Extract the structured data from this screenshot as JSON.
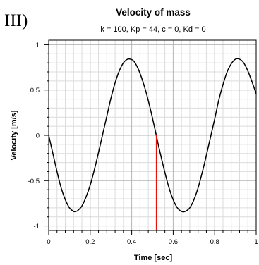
{
  "panel_label": "III)",
  "chart_data": {
    "type": "line",
    "title": "Velocity of mass",
    "subtitle": "k = 100, Kp = 44, c = 0, Kd = 0",
    "xlabel": "Time [sec]",
    "ylabel": "Velocity [m/s]",
    "xlim": [
      0,
      1
    ],
    "ylim": [
      -1.05,
      1.05
    ],
    "x_ticks": [
      0,
      0.2,
      0.4,
      0.6,
      0.8,
      1
    ],
    "x_tick_labels": [
      "0",
      "0.2",
      "0.4",
      "0.6",
      "0.8",
      "1"
    ],
    "y_ticks": [
      1,
      0.5,
      0,
      -0.5,
      -1
    ],
    "y_tick_labels": [
      "1",
      "0.5",
      "0",
      "-0.5",
      "-1"
    ],
    "grid": true,
    "series": [
      {
        "color": "#000000",
        "x": [
          0,
          0.02,
          0.04,
          0.06,
          0.08,
          0.1,
          0.12,
          0.13,
          0.14,
          0.16,
          0.18,
          0.2,
          0.22,
          0.24,
          0.26,
          0.28,
          0.3,
          0.32,
          0.34,
          0.36,
          0.38,
          0.395,
          0.41,
          0.43,
          0.45,
          0.47,
          0.49,
          0.51,
          0.525,
          0.54,
          0.56,
          0.58,
          0.6,
          0.62,
          0.64,
          0.658,
          0.68,
          0.7,
          0.72,
          0.74,
          0.76,
          0.78,
          0.8,
          0.82,
          0.84,
          0.86,
          0.88,
          0.9,
          0.92,
          0.94,
          0.96,
          0.98,
          1.0
        ],
        "y": [
          0,
          -0.2,
          -0.4,
          -0.58,
          -0.71,
          -0.8,
          -0.84,
          -0.84,
          -0.83,
          -0.78,
          -0.68,
          -0.55,
          -0.38,
          -0.19,
          0.01,
          0.21,
          0.41,
          0.58,
          0.71,
          0.8,
          0.84,
          0.84,
          0.82,
          0.74,
          0.62,
          0.47,
          0.29,
          0.09,
          -0.07,
          -0.22,
          -0.41,
          -0.58,
          -0.71,
          -0.8,
          -0.84,
          -0.84,
          -0.8,
          -0.71,
          -0.58,
          -0.41,
          -0.22,
          -0.02,
          0.18,
          0.39,
          0.56,
          0.7,
          0.79,
          0.84,
          0.84,
          0.8,
          0.71,
          0.59,
          0.46
        ]
      }
    ],
    "annotations": [
      {
        "type": "vline",
        "x": 0.52,
        "y_from": -1.05,
        "y_to": 0.0,
        "color": "#e8120c"
      }
    ]
  }
}
